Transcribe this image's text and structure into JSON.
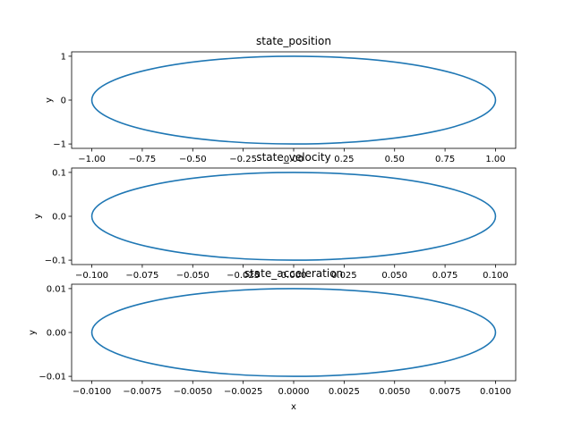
{
  "chart_data": [
    {
      "type": "line",
      "title": "state_position",
      "xlabel": "",
      "ylabel": "y",
      "xlim": [
        -1.1,
        1.1
      ],
      "ylim": [
        -1.1,
        1.1
      ],
      "xticks": [
        -1.0,
        -0.75,
        -0.5,
        -0.25,
        0.0,
        0.25,
        0.5,
        0.75,
        1.0
      ],
      "xtick_labels": [
        "−1.00",
        "−0.75",
        "−0.50",
        "−0.25",
        "0.00",
        "0.25",
        "0.50",
        "0.75",
        "1.00"
      ],
      "yticks": [
        -1,
        0,
        1
      ],
      "ytick_labels": [
        "−1",
        "0",
        "1"
      ],
      "series": [
        {
          "shape": "ellipse",
          "center": [
            0,
            0
          ],
          "x_radius": 1.0,
          "y_radius": 1.0
        }
      ]
    },
    {
      "type": "line",
      "title": "state_velocity",
      "xlabel": "",
      "ylabel": "y",
      "xlim": [
        -0.11,
        0.11
      ],
      "ylim": [
        -0.11,
        0.11
      ],
      "xticks": [
        -0.1,
        -0.075,
        -0.05,
        -0.025,
        0.0,
        0.025,
        0.05,
        0.075,
        0.1
      ],
      "xtick_labels": [
        "−0.100",
        "−0.075",
        "−0.050",
        "−0.025",
        "0.000",
        "0.025",
        "0.050",
        "0.075",
        "0.100"
      ],
      "yticks": [
        -0.1,
        0.0,
        0.1
      ],
      "ytick_labels": [
        "−0.1",
        "0.0",
        "0.1"
      ],
      "series": [
        {
          "shape": "ellipse",
          "center": [
            0,
            0
          ],
          "x_radius": 0.1,
          "y_radius": 0.1
        }
      ]
    },
    {
      "type": "line",
      "title": "state_acceleration",
      "xlabel": "x",
      "ylabel": "y",
      "xlim": [
        -0.011,
        0.011
      ],
      "ylim": [
        -0.011,
        0.011
      ],
      "xticks": [
        -0.01,
        -0.0075,
        -0.005,
        -0.0025,
        0.0,
        0.0025,
        0.005,
        0.0075,
        0.01
      ],
      "xtick_labels": [
        "−0.0100",
        "−0.0075",
        "−0.0050",
        "−0.0025",
        "0.0000",
        "0.0025",
        "0.0050",
        "0.0075",
        "0.0100"
      ],
      "yticks": [
        -0.01,
        0.0,
        0.01
      ],
      "ytick_labels": [
        "−0.01",
        "0.00",
        "0.01"
      ],
      "series": [
        {
          "shape": "ellipse",
          "center": [
            0,
            0
          ],
          "x_radius": 0.01,
          "y_radius": 0.01
        }
      ]
    }
  ],
  "colors": {
    "series": "#1f77b4",
    "axes": "#000000",
    "background": "#ffffff"
  }
}
